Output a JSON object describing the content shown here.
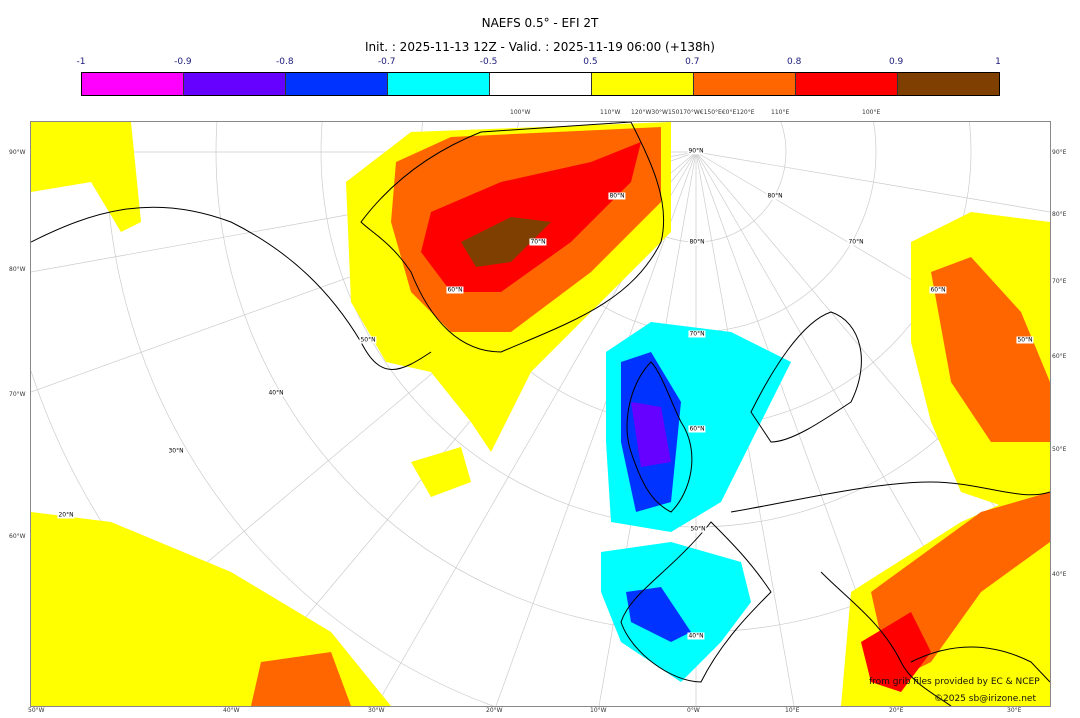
{
  "title": "NAEFS 0.5° - EFI 2T",
  "subtitle": "Init. : 2025-11-13 12Z - Valid. : 2025-11-19 06:00 (+138h)",
  "colorbar": {
    "ticks": [
      "-1",
      "-0.9",
      "-0.8",
      "-0.7",
      "-0.5",
      "0.5",
      "0.7",
      "0.8",
      "0.9",
      "1"
    ],
    "colors": [
      "#ff00ff",
      "#6600ff",
      "#0033ff",
      "#00ffff",
      "#ffffff",
      "#ffff00",
      "#ff6600",
      "#ff0000",
      "#7f3f00"
    ]
  },
  "axes": {
    "left": [
      "90°W",
      "80°W",
      "70°W",
      "60°W"
    ],
    "right": [
      "90°E",
      "80°E",
      "70°E",
      "60°E",
      "50°E",
      "40°E"
    ],
    "bottom": [
      "50°W",
      "40°W",
      "30°W",
      "20°W",
      "10°W",
      "0°W",
      "10°E",
      "20°E",
      "30°E"
    ],
    "top": [
      "100°W",
      "110°W",
      "120°W30°W150170°W€150°E€0°E120°E",
      "110°E",
      "100°E"
    ]
  },
  "lat_labels": [
    "90°N",
    "80°N",
    "70°N",
    "60°N",
    "50°N",
    "40°N",
    "50°N",
    "40°N",
    "30°N",
    "20°N",
    "80°N",
    "70°N",
    "60°N",
    "80°N",
    "70°N",
    "60°N",
    "50°N"
  ],
  "credits": {
    "source": "from grib files provided by EC & NCEP",
    "copyright": "©2025 sb@irizone.net"
  }
}
